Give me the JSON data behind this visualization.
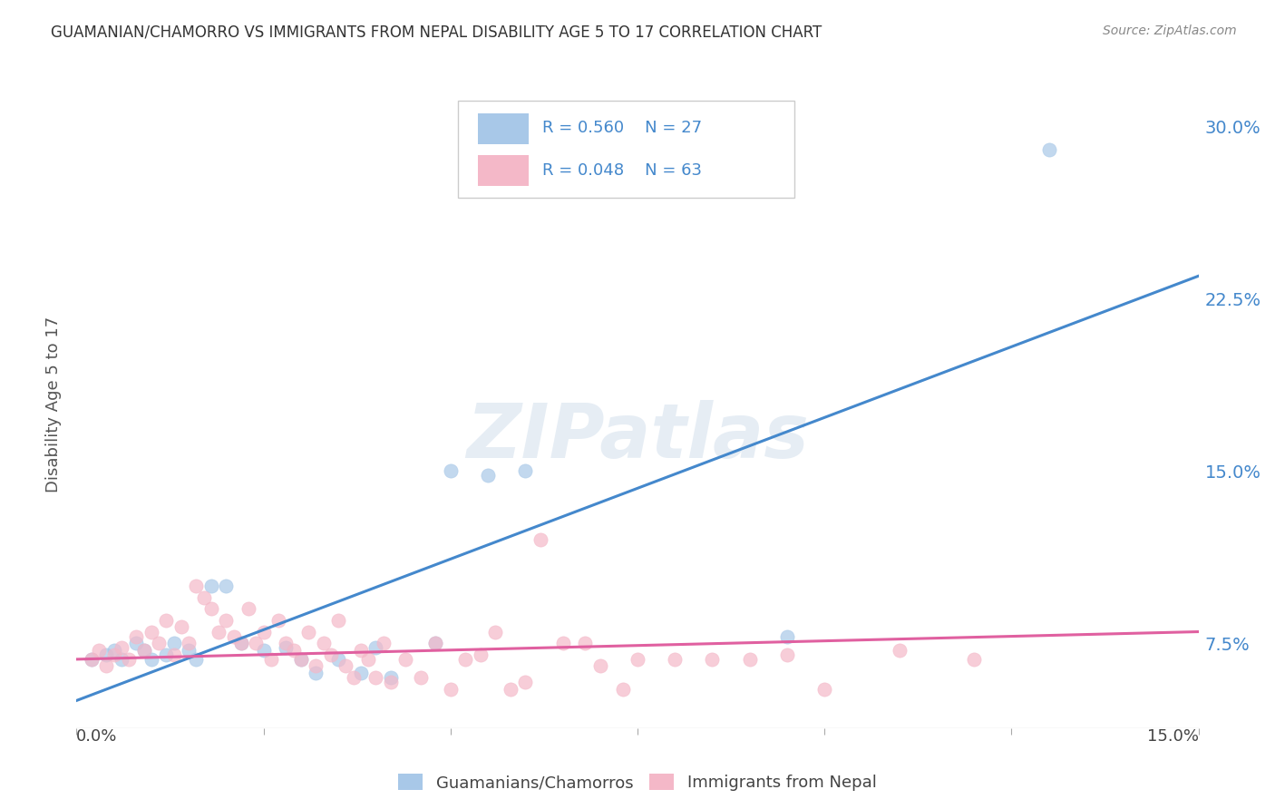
{
  "title": "GUAMANIAN/CHAMORRO VS IMMIGRANTS FROM NEPAL DISABILITY AGE 5 TO 17 CORRELATION CHART",
  "source": "Source: ZipAtlas.com",
  "ylabel": "Disability Age 5 to 17",
  "ytick_labels": [
    "7.5%",
    "15.0%",
    "22.5%",
    "30.0%"
  ],
  "ytick_values": [
    0.075,
    0.15,
    0.225,
    0.3
  ],
  "xlim": [
    0.0,
    0.15
  ],
  "ylim": [
    0.038,
    0.32
  ],
  "watermark": "ZIPatlas",
  "blue_color": "#a8c8e8",
  "pink_color": "#f4b8c8",
  "blue_line_color": "#4488cc",
  "pink_line_color": "#e060a0",
  "legend_color": "#4488cc",
  "blue_scatter": [
    [
      0.002,
      0.068
    ],
    [
      0.004,
      0.07
    ],
    [
      0.005,
      0.072
    ],
    [
      0.006,
      0.068
    ],
    [
      0.008,
      0.075
    ],
    [
      0.009,
      0.072
    ],
    [
      0.01,
      0.068
    ],
    [
      0.012,
      0.07
    ],
    [
      0.013,
      0.075
    ],
    [
      0.015,
      0.072
    ],
    [
      0.016,
      0.068
    ],
    [
      0.018,
      0.1
    ],
    [
      0.02,
      0.1
    ],
    [
      0.022,
      0.075
    ],
    [
      0.025,
      0.072
    ],
    [
      0.028,
      0.073
    ],
    [
      0.03,
      0.068
    ],
    [
      0.032,
      0.062
    ],
    [
      0.035,
      0.068
    ],
    [
      0.038,
      0.062
    ],
    [
      0.04,
      0.073
    ],
    [
      0.042,
      0.06
    ],
    [
      0.048,
      0.075
    ],
    [
      0.05,
      0.15
    ],
    [
      0.055,
      0.148
    ],
    [
      0.06,
      0.15
    ],
    [
      0.095,
      0.078
    ],
    [
      0.13,
      0.29
    ]
  ],
  "pink_scatter": [
    [
      0.002,
      0.068
    ],
    [
      0.003,
      0.072
    ],
    [
      0.004,
      0.065
    ],
    [
      0.005,
      0.07
    ],
    [
      0.006,
      0.073
    ],
    [
      0.007,
      0.068
    ],
    [
      0.008,
      0.078
    ],
    [
      0.009,
      0.072
    ],
    [
      0.01,
      0.08
    ],
    [
      0.011,
      0.075
    ],
    [
      0.012,
      0.085
    ],
    [
      0.013,
      0.07
    ],
    [
      0.014,
      0.082
    ],
    [
      0.015,
      0.075
    ],
    [
      0.016,
      0.1
    ],
    [
      0.017,
      0.095
    ],
    [
      0.018,
      0.09
    ],
    [
      0.019,
      0.08
    ],
    [
      0.02,
      0.085
    ],
    [
      0.021,
      0.078
    ],
    [
      0.022,
      0.075
    ],
    [
      0.023,
      0.09
    ],
    [
      0.024,
      0.075
    ],
    [
      0.025,
      0.08
    ],
    [
      0.026,
      0.068
    ],
    [
      0.027,
      0.085
    ],
    [
      0.028,
      0.075
    ],
    [
      0.029,
      0.072
    ],
    [
      0.03,
      0.068
    ],
    [
      0.031,
      0.08
    ],
    [
      0.032,
      0.065
    ],
    [
      0.033,
      0.075
    ],
    [
      0.034,
      0.07
    ],
    [
      0.035,
      0.085
    ],
    [
      0.036,
      0.065
    ],
    [
      0.037,
      0.06
    ],
    [
      0.038,
      0.072
    ],
    [
      0.039,
      0.068
    ],
    [
      0.04,
      0.06
    ],
    [
      0.041,
      0.075
    ],
    [
      0.042,
      0.058
    ],
    [
      0.044,
      0.068
    ],
    [
      0.046,
      0.06
    ],
    [
      0.048,
      0.075
    ],
    [
      0.05,
      0.055
    ],
    [
      0.052,
      0.068
    ],
    [
      0.054,
      0.07
    ],
    [
      0.056,
      0.08
    ],
    [
      0.058,
      0.055
    ],
    [
      0.06,
      0.058
    ],
    [
      0.062,
      0.12
    ],
    [
      0.065,
      0.075
    ],
    [
      0.068,
      0.075
    ],
    [
      0.07,
      0.065
    ],
    [
      0.073,
      0.055
    ],
    [
      0.075,
      0.068
    ],
    [
      0.08,
      0.068
    ],
    [
      0.085,
      0.068
    ],
    [
      0.09,
      0.068
    ],
    [
      0.095,
      0.07
    ],
    [
      0.1,
      0.055
    ],
    [
      0.11,
      0.072
    ],
    [
      0.12,
      0.068
    ]
  ],
  "blue_line_x": [
    0.0,
    0.15
  ],
  "blue_line_y": [
    0.05,
    0.235
  ],
  "pink_line_x": [
    0.0,
    0.15
  ],
  "pink_line_y": [
    0.068,
    0.08
  ]
}
